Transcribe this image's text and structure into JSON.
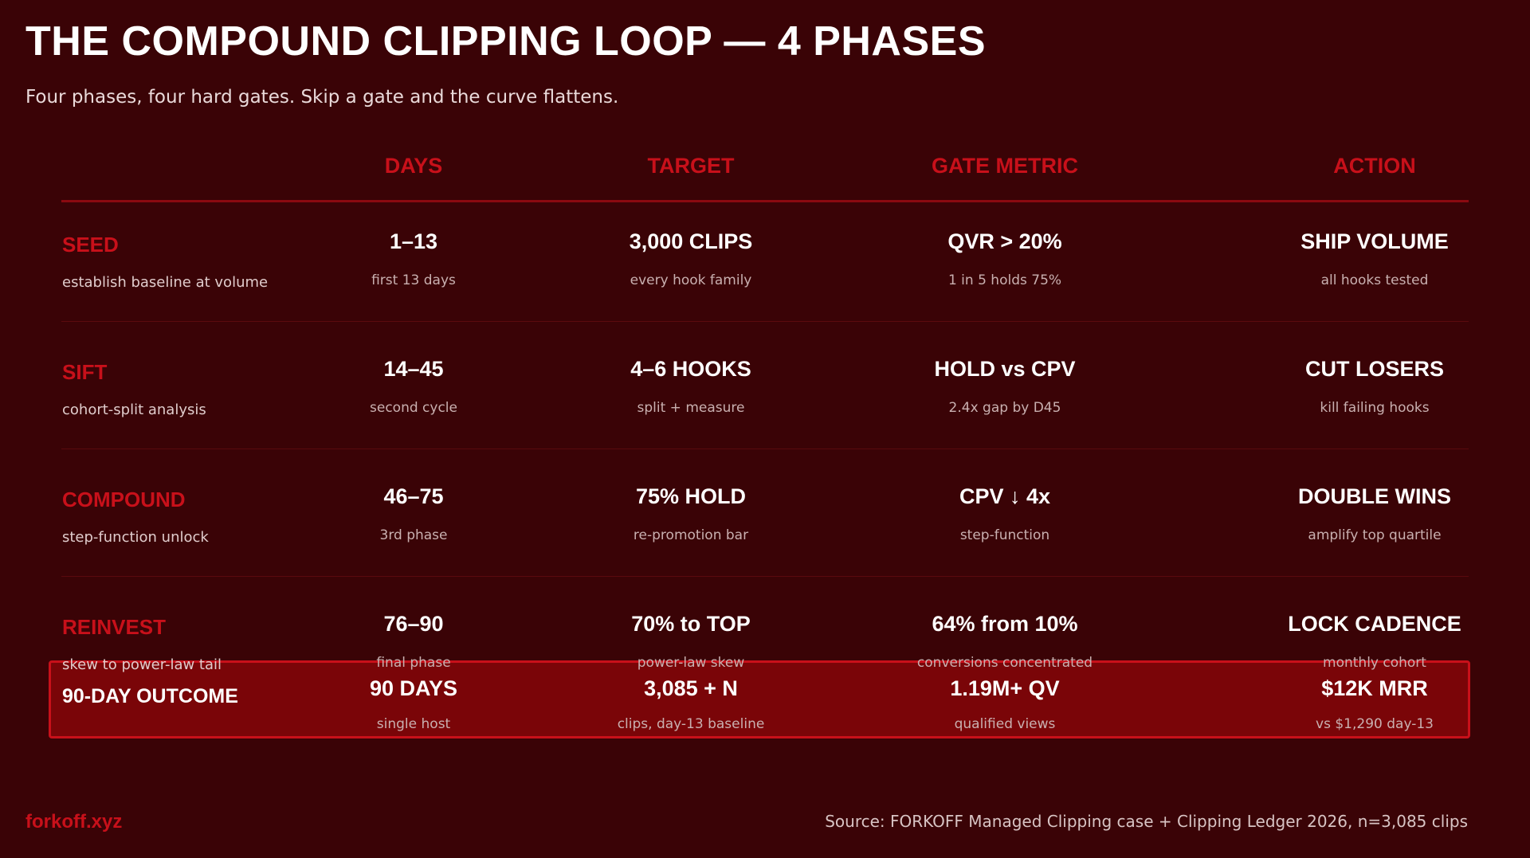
{
  "header": {
    "title": "THE COMPOUND CLIPPING LOOP — 4 PHASES",
    "subtitle": "Four phases, four hard gates. Skip a gate and the curve flattens."
  },
  "table": {
    "columns": [
      "DAYS",
      "TARGET",
      "GATE METRIC",
      "ACTION"
    ],
    "rows": [
      {
        "phase": "SEED",
        "description": "establish baseline at volume",
        "cells": [
          {
            "value": "1–13",
            "note": "first 13 days"
          },
          {
            "value": "3,000 CLIPS",
            "note": "every hook family"
          },
          {
            "value": "QVR > 20%",
            "note": "1 in 5 holds 75%"
          },
          {
            "value": "SHIP VOLUME",
            "note": "all hooks tested"
          }
        ]
      },
      {
        "phase": "SIFT",
        "description": "cohort-split analysis",
        "cells": [
          {
            "value": "14–45",
            "note": "second cycle"
          },
          {
            "value": "4–6 HOOKS",
            "note": "split + measure"
          },
          {
            "value": "HOLD vs CPV",
            "note": "2.4x gap by D45"
          },
          {
            "value": "CUT LOSERS",
            "note": "kill failing hooks"
          }
        ]
      },
      {
        "phase": "COMPOUND",
        "description": "step-function unlock",
        "cells": [
          {
            "value": "46–75",
            "note": "3rd phase"
          },
          {
            "value": "75% HOLD",
            "note": "re-promotion bar"
          },
          {
            "value": "CPV ↓ 4x",
            "note": "step-function"
          },
          {
            "value": "DOUBLE WINS",
            "note": "amplify top quartile"
          }
        ]
      },
      {
        "phase": "REINVEST",
        "description": "skew to power-law tail",
        "cells": [
          {
            "value": "76–90",
            "note": "final phase"
          },
          {
            "value": "70% to TOP",
            "note": "power-law skew"
          },
          {
            "value": "64% from 10%",
            "note": "conversions concentrated"
          },
          {
            "value": "LOCK CADENCE",
            "note": "monthly cohort"
          }
        ]
      }
    ],
    "outcome": {
      "label": "90-DAY OUTCOME",
      "cells": [
        {
          "value": "90 DAYS",
          "note": "single host"
        },
        {
          "value": "3,085 + N",
          "note": "clips, day-13 baseline"
        },
        {
          "value": "1.19M+ QV",
          "note": "qualified views"
        },
        {
          "value": "$12K MRR",
          "note": "vs $1,290 day-13"
        }
      ]
    }
  },
  "footer": {
    "brand": "forkoff.xyz",
    "source": "Source: FORKOFF Managed Clipping case + Clipping Ledger 2026, n=3,085 clips"
  }
}
